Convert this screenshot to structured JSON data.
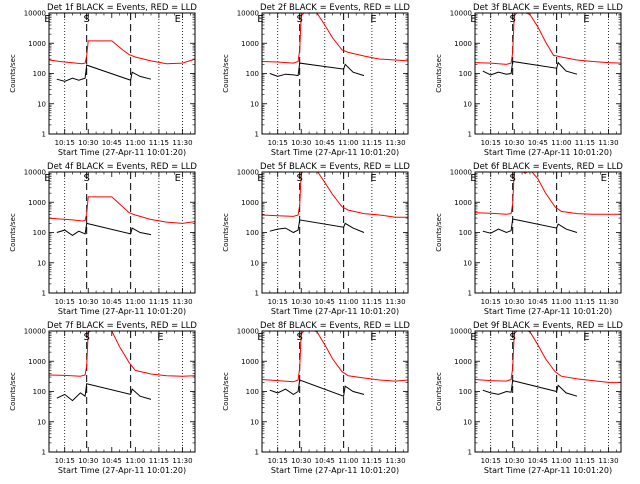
{
  "chart_data": [
    {
      "type": "line",
      "title": "Det 1f BLACK = Events, RED = LLD",
      "xlabel": "Start Time (27-Apr-11 10:01:20)",
      "ylabel": "Counts/sec",
      "yscale": "log",
      "ylim": [
        1,
        10000
      ],
      "yticks": [
        "1",
        "10",
        "100",
        "1000",
        "10000"
      ],
      "xlim": [
        "10:05",
        "11:38"
      ],
      "xticks": [
        "10:15",
        "10:30",
        "10:45",
        "11:00",
        "11:15",
        "11:30"
      ],
      "markers": [
        {
          "label": "E",
          "x": "10:04"
        },
        {
          "label": "S",
          "x": "10:29"
        },
        {
          "label": "E",
          "x": "11:27"
        }
      ],
      "dotted_x": [
        "10:15",
        "11:15",
        "11:30"
      ],
      "dashed_x": [
        "10:29",
        "10:57"
      ],
      "series": [
        {
          "color": "#ff0000",
          "x": [
            "10:05",
            "10:12",
            "10:20",
            "10:26",
            "10:28",
            "10:29",
            "10:30",
            "10:45",
            "10:52",
            "10:56",
            "11:00",
            "11:10",
            "11:20",
            "11:30",
            "11:38"
          ],
          "values": [
            280,
            250,
            225,
            210,
            220,
            380,
            1200,
            1200,
            600,
            420,
            350,
            260,
            210,
            220,
            300
          ]
        },
        {
          "color": "#000000",
          "x": [
            "10:10",
            "10:15",
            "10:20",
            "10:24",
            "10:28",
            "10:29",
            "10:57",
            "10:58",
            "11:03",
            "11:10"
          ],
          "values": [
            65,
            55,
            70,
            60,
            70,
            190,
            60,
            110,
            80,
            65
          ]
        }
      ]
    },
    {
      "type": "line",
      "title": "Det 2f BLACK = Events, RED = LLD",
      "xlabel": "Start Time (27-Apr-11 10:01:20)",
      "ylabel": "Counts/sec",
      "yscale": "log",
      "ylim": [
        1,
        10000
      ],
      "yticks": [
        "1",
        "10",
        "100",
        "1000",
        "10000"
      ],
      "xlim": [
        "10:05",
        "11:38"
      ],
      "xticks": [
        "10:15",
        "10:30",
        "10:45",
        "11:00",
        "11:15",
        "11:30"
      ],
      "markers": [
        {
          "label": "E",
          "x": "10:04"
        },
        {
          "label": "S",
          "x": "10:29"
        },
        {
          "label": "E",
          "x": "11:16"
        }
      ],
      "dotted_x": [
        "10:15",
        "10:45",
        "11:15",
        "11:30"
      ],
      "dashed_x": [
        "10:29",
        "10:57"
      ],
      "series": [
        {
          "color": "#ff0000",
          "x": [
            "10:05",
            "10:15",
            "10:25",
            "10:28",
            "10:29",
            "10:30",
            "10:33",
            "10:40",
            "10:45",
            "10:50",
            "10:56",
            "11:00",
            "11:10",
            "11:20",
            "11:30",
            "11:38"
          ],
          "values": [
            250,
            240,
            220,
            250,
            600,
            8000,
            12000,
            10000,
            4000,
            1500,
            600,
            500,
            380,
            300,
            280,
            260
          ]
        },
        {
          "color": "#000000",
          "x": [
            "10:10",
            "10:15",
            "10:20",
            "10:25",
            "10:28",
            "10:29",
            "10:57",
            "10:58",
            "11:03",
            "11:10"
          ],
          "values": [
            100,
            80,
            95,
            90,
            85,
            220,
            140,
            200,
            110,
            85
          ]
        }
      ]
    },
    {
      "type": "line",
      "title": "Det 3f BLACK = Events, RED = LLD",
      "xlabel": "Start Time (27-Apr-11 10:01:20)",
      "ylabel": "Counts/sec",
      "yscale": "log",
      "ylim": [
        1,
        10000
      ],
      "yticks": [
        "1",
        "10",
        "100",
        "1000",
        "10000"
      ],
      "xlim": [
        "10:05",
        "11:38"
      ],
      "xticks": [
        "10:15",
        "10:30",
        "10:45",
        "11:00",
        "11:15",
        "11:30"
      ],
      "markers": [
        {
          "label": "E",
          "x": "10:04"
        },
        {
          "label": "S",
          "x": "10:29"
        },
        {
          "label": "E",
          "x": "11:16"
        }
      ],
      "dotted_x": [
        "10:15",
        "10:45",
        "11:15",
        "11:30"
      ],
      "dashed_x": [
        "10:29",
        "10:57"
      ],
      "series": [
        {
          "color": "#ff0000",
          "x": [
            "10:05",
            "10:15",
            "10:25",
            "10:28",
            "10:29",
            "10:30",
            "10:33",
            "10:40",
            "10:45",
            "10:50",
            "10:55",
            "11:00",
            "11:10",
            "11:20",
            "11:30",
            "11:38"
          ],
          "values": [
            230,
            220,
            200,
            220,
            500,
            8000,
            12000,
            9000,
            3500,
            1100,
            400,
            350,
            280,
            250,
            230,
            220
          ]
        },
        {
          "color": "#000000",
          "x": [
            "10:10",
            "10:15",
            "10:20",
            "10:25",
            "10:28",
            "10:29",
            "10:57",
            "10:58",
            "11:03",
            "11:10"
          ],
          "values": [
            120,
            90,
            110,
            95,
            100,
            250,
            150,
            230,
            120,
            95
          ]
        }
      ]
    },
    {
      "type": "line",
      "title": "Det 4f BLACK = Events, RED = LLD",
      "xlabel": "Start Time (27-Apr-11 10:01:20)",
      "ylabel": "Counts/sec",
      "yscale": "log",
      "ylim": [
        1,
        10000
      ],
      "yticks": [
        "1",
        "10",
        "100",
        "1000",
        "10000"
      ],
      "xlim": [
        "10:05",
        "11:38"
      ],
      "xticks": [
        "10:15",
        "10:30",
        "10:45",
        "11:00",
        "11:15",
        "11:30"
      ],
      "markers": [
        {
          "label": "E",
          "x": "10:04"
        },
        {
          "label": "S",
          "x": "10:29"
        },
        {
          "label": "E",
          "x": "11:27"
        }
      ],
      "dotted_x": [
        "10:15",
        "11:15",
        "11:30"
      ],
      "dashed_x": [
        "10:29",
        "10:57"
      ],
      "series": [
        {
          "color": "#ff0000",
          "x": [
            "10:05",
            "10:12",
            "10:20",
            "10:26",
            "10:28",
            "10:29",
            "10:30",
            "10:45",
            "10:52",
            "10:56",
            "11:00",
            "11:10",
            "11:20",
            "11:30",
            "11:38"
          ],
          "values": [
            300,
            280,
            260,
            240,
            250,
            420,
            1500,
            1500,
            700,
            450,
            380,
            270,
            220,
            200,
            230
          ]
        },
        {
          "color": "#000000",
          "x": [
            "10:10",
            "10:15",
            "10:20",
            "10:24",
            "10:28",
            "10:29",
            "10:57",
            "10:58",
            "11:03",
            "11:10"
          ],
          "values": [
            100,
            120,
            80,
            110,
            90,
            200,
            90,
            140,
            100,
            85
          ]
        }
      ]
    },
    {
      "type": "line",
      "title": "Det 5f BLACK = Events, RED = LLD",
      "xlabel": "Start Time (27-Apr-11 10:01:20)",
      "ylabel": "Counts/sec",
      "yscale": "log",
      "ylim": [
        1,
        10000
      ],
      "yticks": [
        "1",
        "10",
        "100",
        "1000",
        "10000"
      ],
      "xlim": [
        "10:05",
        "11:38"
      ],
      "xticks": [
        "10:15",
        "10:30",
        "10:45",
        "11:00",
        "11:15",
        "11:30"
      ],
      "markers": [
        {
          "label": "E",
          "x": "10:04"
        },
        {
          "label": "S",
          "x": "10:29"
        },
        {
          "label": "E",
          "x": "11:16"
        }
      ],
      "dotted_x": [
        "10:15",
        "10:45",
        "11:15",
        "11:30"
      ],
      "dashed_x": [
        "10:29",
        "10:57"
      ],
      "series": [
        {
          "color": "#ff0000",
          "x": [
            "10:05",
            "10:15",
            "10:25",
            "10:28",
            "10:29",
            "10:30",
            "10:33",
            "10:40",
            "10:45",
            "10:50",
            "10:56",
            "11:00",
            "11:10",
            "11:20",
            "11:30",
            "11:38"
          ],
          "values": [
            380,
            360,
            340,
            380,
            800,
            9000,
            12000,
            11000,
            4500,
            1800,
            700,
            550,
            420,
            380,
            320,
            320
          ]
        },
        {
          "color": "#000000",
          "x": [
            "10:10",
            "10:15",
            "10:20",
            "10:25",
            "10:28",
            "10:29",
            "10:57",
            "10:58",
            "11:03",
            "11:10"
          ],
          "values": [
            110,
            130,
            140,
            100,
            120,
            260,
            150,
            200,
            140,
            100
          ]
        }
      ]
    },
    {
      "type": "line",
      "title": "Det 6f BLACK = Events, RED = LLD",
      "xlabel": "Start Time (27-Apr-11 10:01:20)",
      "ylabel": "Counts/sec",
      "yscale": "log",
      "ylim": [
        1,
        10000
      ],
      "yticks": [
        "1",
        "10",
        "100",
        "1000",
        "10000"
      ],
      "xlim": [
        "10:05",
        "11:38"
      ],
      "xticks": [
        "10:15",
        "10:30",
        "10:45",
        "11:00",
        "11:15",
        "11:30"
      ],
      "markers": [
        {
          "label": "E",
          "x": "10:04"
        },
        {
          "label": "S",
          "x": "10:29"
        },
        {
          "label": "E",
          "x": "11:27"
        }
      ],
      "dotted_x": [
        "10:15",
        "10:45",
        "11:15",
        "11:30"
      ],
      "dashed_x": [
        "10:29",
        "10:57"
      ],
      "series": [
        {
          "color": "#ff0000",
          "x": [
            "10:05",
            "10:15",
            "10:25",
            "10:28",
            "10:29",
            "10:30",
            "10:34",
            "10:37",
            "10:40",
            "10:45",
            "10:50",
            "10:56",
            "11:00",
            "11:10",
            "11:20",
            "11:30",
            "11:38"
          ],
          "values": [
            450,
            430,
            400,
            420,
            900,
            9500,
            12000,
            9000,
            12000,
            6000,
            2000,
            700,
            500,
            420,
            400,
            400,
            400
          ]
        },
        {
          "color": "#000000",
          "x": [
            "10:10",
            "10:15",
            "10:20",
            "10:25",
            "10:28",
            "10:29",
            "10:57",
            "10:58",
            "11:03",
            "11:10"
          ],
          "values": [
            110,
            95,
            130,
            100,
            115,
            280,
            140,
            190,
            130,
            100
          ]
        }
      ]
    },
    {
      "type": "line",
      "title": "Det 7f BLACK = Events, RED = LLD",
      "xlabel": "Start Time (27-Apr-11 10:01:20)",
      "ylabel": "Counts/sec",
      "yscale": "log",
      "ylim": [
        1,
        10000
      ],
      "yticks": [
        "1",
        "10",
        "100",
        "1000",
        "10000"
      ],
      "xlim": [
        "10:05",
        "11:38"
      ],
      "xticks": [
        "10:15",
        "10:30",
        "10:45",
        "11:00",
        "11:15",
        "11:30"
      ],
      "markers": [
        {
          "label": "S",
          "x": "10:29"
        },
        {
          "label": "E",
          "x": "11:16"
        }
      ],
      "dotted_x": [
        "10:15",
        "11:15",
        "11:30"
      ],
      "dashed_x": [
        "10:29",
        "10:57"
      ],
      "series": [
        {
          "color": "#ff0000",
          "x": [
            "10:05",
            "10:15",
            "10:25",
            "10:28",
            "10:29",
            "10:30",
            "10:33",
            "10:45",
            "10:50",
            "10:56",
            "11:00",
            "11:10",
            "11:20",
            "11:30",
            "11:38"
          ],
          "values": [
            350,
            340,
            320,
            350,
            700,
            9000,
            11000,
            10000,
            3000,
            900,
            500,
            380,
            330,
            320,
            330
          ]
        },
        {
          "color": "#000000",
          "x": [
            "10:10",
            "10:15",
            "10:20",
            "10:25",
            "10:28",
            "10:29",
            "10:57",
            "10:58",
            "11:03",
            "11:10"
          ],
          "values": [
            60,
            80,
            50,
            90,
            70,
            180,
            80,
            120,
            70,
            55
          ]
        }
      ]
    },
    {
      "type": "line",
      "title": "Det 8f BLACK = Events, RED = LLD",
      "xlabel": "Start Time (27-Apr-11 10:01:20)",
      "ylabel": "Counts/sec",
      "yscale": "log",
      "ylim": [
        1,
        10000
      ],
      "yticks": [
        "1",
        "10",
        "100",
        "1000",
        "10000"
      ],
      "xlim": [
        "10:05",
        "11:38"
      ],
      "xticks": [
        "10:15",
        "10:30",
        "10:45",
        "11:00",
        "11:15",
        "11:30"
      ],
      "markers": [
        {
          "label": "E",
          "x": "10:04"
        },
        {
          "label": "S",
          "x": "10:29"
        },
        {
          "label": "E",
          "x": "11:16"
        }
      ],
      "dotted_x": [
        "10:15",
        "10:45",
        "11:15",
        "11:30"
      ],
      "dashed_x": [
        "10:29",
        "10:57"
      ],
      "series": [
        {
          "color": "#ff0000",
          "x": [
            "10:05",
            "10:15",
            "10:25",
            "10:28",
            "10:29",
            "10:30",
            "10:33",
            "10:40",
            "10:45",
            "10:50",
            "10:56",
            "11:00",
            "11:10",
            "11:20",
            "11:30",
            "11:38"
          ],
          "values": [
            250,
            230,
            210,
            240,
            600,
            8000,
            12000,
            9500,
            3500,
            1200,
            450,
            330,
            280,
            240,
            220,
            240
          ]
        },
        {
          "color": "#000000",
          "x": [
            "10:10",
            "10:15",
            "10:20",
            "10:25",
            "10:28",
            "10:29",
            "10:57",
            "10:58",
            "11:03",
            "11:10"
          ],
          "values": [
            110,
            90,
            120,
            80,
            100,
            240,
            70,
            150,
            100,
            80
          ]
        }
      ]
    },
    {
      "type": "line",
      "title": "Det 9f BLACK = Events, RED = LLD",
      "xlabel": "Start Time (27-Apr-11 10:01:20)",
      "ylabel": "Counts/sec",
      "yscale": "log",
      "ylim": [
        1,
        10000
      ],
      "yticks": [
        "1",
        "10",
        "100",
        "1000",
        "10000"
      ],
      "xlim": [
        "10:05",
        "11:38"
      ],
      "xticks": [
        "10:15",
        "10:30",
        "10:45",
        "11:00",
        "11:15",
        "11:30"
      ],
      "markers": [
        {
          "label": "E",
          "x": "10:04"
        },
        {
          "label": "S",
          "x": "10:29"
        },
        {
          "label": "E",
          "x": "11:16"
        }
      ],
      "dotted_x": [
        "10:15",
        "10:45",
        "11:15",
        "11:30"
      ],
      "dashed_x": [
        "10:29",
        "10:57"
      ],
      "series": [
        {
          "color": "#ff0000",
          "x": [
            "10:05",
            "10:15",
            "10:25",
            "10:28",
            "10:29",
            "10:30",
            "10:33",
            "10:40",
            "10:45",
            "10:50",
            "10:56",
            "11:00",
            "11:10",
            "11:20",
            "11:30",
            "11:38"
          ],
          "values": [
            250,
            230,
            220,
            250,
            600,
            8000,
            12000,
            9500,
            3500,
            1200,
            450,
            320,
            260,
            230,
            200,
            200
          ]
        },
        {
          "color": "#000000",
          "x": [
            "10:10",
            "10:15",
            "10:20",
            "10:25",
            "10:28",
            "10:29",
            "10:57",
            "10:58",
            "11:03",
            "11:10"
          ],
          "values": [
            110,
            90,
            80,
            100,
            95,
            230,
            100,
            160,
            90,
            70
          ]
        }
      ]
    }
  ]
}
